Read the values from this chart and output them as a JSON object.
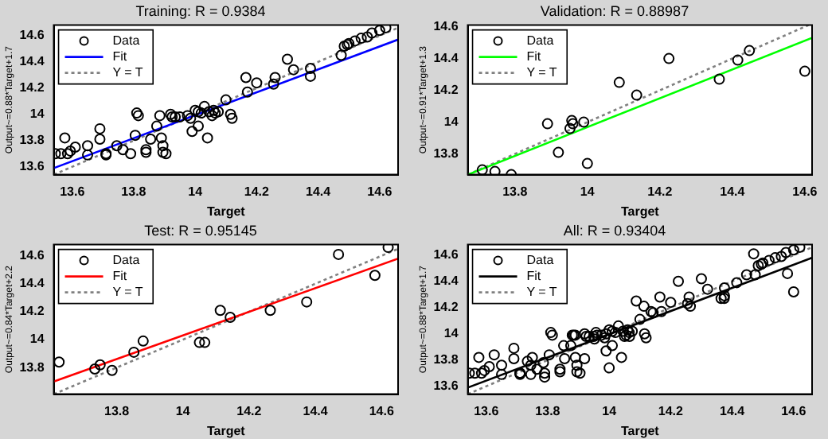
{
  "chart_data": [
    {
      "type": "scatter",
      "title": "Training: R = 0.9384",
      "xlabel": "Target",
      "ylabel": "Output~=0.88*Target+1.7",
      "xlim": [
        13.54,
        14.66
      ],
      "ylim": [
        13.54,
        14.68
      ],
      "xticks": [
        13.6,
        13.8,
        14,
        14.2,
        14.4,
        14.6
      ],
      "yticks": [
        13.6,
        13.8,
        14,
        14.2,
        14.4,
        14.6
      ],
      "legend": "top left",
      "series": [
        {
          "name": "Data",
          "type": "scatter",
          "marker": "circle",
          "color": "#000000",
          "x": [
            13.545,
            13.563,
            13.576,
            13.585,
            13.594,
            13.61,
            13.65,
            13.65,
            13.69,
            13.69,
            13.71,
            13.71,
            13.745,
            13.765,
            13.79,
            13.805,
            13.81,
            13.815,
            13.84,
            13.84,
            13.855,
            13.875,
            13.885,
            13.89,
            13.895,
            13.895,
            13.905,
            13.92,
            13.925,
            13.935,
            13.95,
            13.975,
            13.985,
            13.99,
            14.0,
            14.01,
            14.01,
            14.02,
            14.03,
            14.04,
            14.045,
            14.055,
            14.06,
            14.065,
            14.075,
            14.1,
            14.115,
            14.12,
            14.165,
            14.17,
            14.2,
            14.255,
            14.26,
            14.3,
            14.32,
            14.375,
            14.375,
            14.475,
            14.485,
            14.495,
            14.5,
            14.52,
            14.54,
            14.56,
            14.575,
            14.6,
            14.62
          ],
          "values": [
            13.7,
            13.7,
            13.82,
            13.7,
            13.72,
            13.75,
            13.76,
            13.69,
            13.89,
            13.81,
            13.7,
            13.69,
            13.76,
            13.73,
            13.7,
            13.84,
            14.01,
            13.99,
            13.71,
            13.73,
            13.81,
            13.91,
            13.99,
            13.82,
            13.76,
            13.71,
            13.7,
            14.0,
            13.98,
            13.98,
            13.98,
            13.99,
            13.97,
            13.87,
            14.03,
            13.91,
            14.02,
            14.01,
            14.06,
            13.82,
            14.02,
            13.99,
            14.03,
            14.01,
            14.02,
            14.11,
            14.0,
            13.97,
            14.28,
            14.17,
            14.24,
            14.23,
            14.28,
            14.42,
            14.34,
            14.29,
            14.35,
            14.45,
            14.52,
            14.53,
            14.54,
            14.56,
            14.58,
            14.59,
            14.62,
            14.64,
            14.66
          ]
        },
        {
          "name": "Fit",
          "type": "line",
          "line_style": "solid",
          "color": "#0000ff",
          "x": [
            13.54,
            14.66
          ],
          "values": [
            13.59,
            14.57
          ]
        },
        {
          "name": "Y = T",
          "type": "line",
          "line_style": "dotted",
          "color": "#808080",
          "x": [
            13.54,
            14.66
          ],
          "values": [
            13.54,
            14.66
          ]
        }
      ]
    },
    {
      "type": "scatter",
      "title": "Validation: R = 0.88987",
      "xlabel": "Target",
      "ylabel": "Output~=0.91*Target+1.3",
      "xlim": [
        13.67,
        14.62
      ],
      "ylim": [
        13.67,
        14.61
      ],
      "xticks": [
        13.8,
        14,
        14.2,
        14.4,
        14.6
      ],
      "yticks": [
        13.8,
        14,
        14.2,
        14.4,
        14.6
      ],
      "legend": "top left",
      "series": [
        {
          "name": "Data",
          "type": "scatter",
          "marker": "circle",
          "color": "#000000",
          "x": [
            13.71,
            13.745,
            13.79,
            13.89,
            13.92,
            13.957,
            13.952,
            13.96,
            13.99,
            14.0,
            14.088,
            14.136,
            14.225,
            14.364,
            14.415,
            14.447,
            14.6
          ],
          "values": [
            13.7,
            13.69,
            13.67,
            13.99,
            13.81,
            14.01,
            13.96,
            13.99,
            14.0,
            13.74,
            14.25,
            14.17,
            14.4,
            14.27,
            14.39,
            14.45,
            14.32
          ]
        },
        {
          "name": "Fit",
          "type": "line",
          "line_style": "solid",
          "color": "#00ff00",
          "x": [
            13.67,
            14.62
          ],
          "values": [
            13.67,
            14.53
          ]
        },
        {
          "name": "Y = T",
          "type": "line",
          "line_style": "dotted",
          "color": "#808080",
          "x": [
            13.67,
            14.61
          ],
          "values": [
            13.67,
            14.61
          ]
        }
      ]
    },
    {
      "type": "scatter",
      "title": "Test: R = 0.95145",
      "xlabel": "Target",
      "ylabel": "Output~=0.84*Target+2.2",
      "xlim": [
        13.61,
        14.65
      ],
      "ylim": [
        13.61,
        14.68
      ],
      "xticks": [
        13.8,
        14,
        14.2,
        14.4,
        14.6
      ],
      "yticks": [
        13.8,
        14,
        14.2,
        14.4,
        14.6
      ],
      "legend": "top left",
      "series": [
        {
          "name": "Data",
          "type": "scatter",
          "marker": "circle",
          "color": "#000000",
          "x": [
            13.626,
            13.734,
            13.75,
            13.786,
            13.852,
            13.88,
            14.05,
            14.066,
            14.113,
            14.143,
            14.264,
            14.374,
            14.47,
            14.58,
            14.62
          ],
          "values": [
            13.84,
            13.79,
            13.82,
            13.78,
            13.91,
            13.99,
            13.98,
            13.98,
            14.21,
            14.16,
            14.21,
            14.27,
            14.61,
            14.46,
            14.66
          ]
        },
        {
          "name": "Fit",
          "type": "line",
          "line_style": "solid",
          "color": "#ff0000",
          "x": [
            13.61,
            14.65
          ],
          "values": [
            13.7,
            14.58
          ]
        },
        {
          "name": "Y = T",
          "type": "line",
          "line_style": "dotted",
          "color": "#808080",
          "x": [
            13.61,
            14.65
          ],
          "values": [
            13.61,
            14.65
          ]
        }
      ]
    },
    {
      "type": "scatter",
      "title": "All: R = 0.93404",
      "xlabel": "Target",
      "ylabel": "Output~=0.88*Target+1.7",
      "xlim": [
        13.54,
        14.66
      ],
      "ylim": [
        13.54,
        14.68
      ],
      "xticks": [
        13.6,
        13.8,
        14,
        14.2,
        14.4,
        14.6
      ],
      "yticks": [
        13.6,
        13.8,
        14,
        14.2,
        14.4,
        14.6
      ],
      "legend": "top left",
      "series": [
        {
          "name": "Data",
          "type": "scatter",
          "marker": "circle",
          "color": "#000000",
          "x": [
            13.545,
            13.563,
            13.576,
            13.585,
            13.594,
            13.61,
            13.65,
            13.65,
            13.69,
            13.69,
            13.71,
            13.71,
            13.745,
            13.765,
            13.79,
            13.805,
            13.81,
            13.815,
            13.84,
            13.84,
            13.855,
            13.875,
            13.885,
            13.89,
            13.895,
            13.895,
            13.905,
            13.92,
            13.925,
            13.935,
            13.95,
            13.975,
            13.985,
            13.99,
            14.0,
            14.01,
            14.01,
            14.02,
            14.03,
            14.04,
            14.045,
            14.055,
            14.06,
            14.065,
            14.075,
            14.1,
            14.115,
            14.12,
            14.165,
            14.17,
            14.2,
            14.255,
            14.26,
            14.3,
            14.32,
            14.375,
            14.375,
            14.475,
            14.485,
            14.495,
            14.5,
            14.52,
            14.54,
            14.56,
            14.575,
            14.6,
            14.62,
            13.71,
            13.745,
            13.79,
            13.89,
            13.92,
            13.957,
            13.952,
            13.96,
            13.99,
            14.0,
            14.088,
            14.136,
            14.225,
            14.364,
            14.415,
            14.447,
            14.6,
            13.626,
            13.734,
            13.75,
            13.786,
            13.852,
            13.88,
            14.05,
            14.066,
            14.113,
            14.143,
            14.264,
            14.374,
            14.47,
            14.58
          ],
          "values": [
            13.7,
            13.7,
            13.82,
            13.7,
            13.72,
            13.75,
            13.76,
            13.69,
            13.89,
            13.81,
            13.7,
            13.69,
            13.76,
            13.73,
            13.7,
            13.84,
            14.01,
            13.99,
            13.71,
            13.73,
            13.81,
            13.91,
            13.99,
            13.82,
            13.76,
            13.71,
            13.7,
            14.0,
            13.98,
            13.98,
            13.98,
            13.99,
            13.97,
            13.87,
            14.03,
            13.91,
            14.02,
            14.01,
            14.06,
            13.82,
            14.02,
            13.99,
            14.03,
            14.01,
            14.02,
            14.11,
            14.0,
            13.97,
            14.28,
            14.17,
            14.24,
            14.23,
            14.28,
            14.42,
            14.34,
            14.29,
            14.35,
            14.45,
            14.52,
            14.53,
            14.54,
            14.56,
            14.58,
            14.59,
            14.62,
            14.64,
            14.66,
            13.7,
            13.69,
            13.67,
            13.99,
            13.81,
            14.01,
            13.96,
            13.99,
            14.0,
            13.74,
            14.25,
            14.17,
            14.4,
            14.27,
            14.39,
            14.45,
            14.32,
            13.84,
            13.79,
            13.82,
            13.78,
            13.91,
            13.99,
            13.98,
            13.98,
            14.21,
            14.16,
            14.21,
            14.27,
            14.61,
            14.46
          ]
        },
        {
          "name": "Fit",
          "type": "line",
          "line_style": "solid",
          "color": "#000000",
          "x": [
            13.54,
            14.66
          ],
          "values": [
            13.59,
            14.58
          ]
        },
        {
          "name": "Y = T",
          "type": "line",
          "line_style": "dotted",
          "color": "#808080",
          "x": [
            13.54,
            14.66
          ],
          "values": [
            13.54,
            14.66
          ]
        }
      ]
    }
  ]
}
